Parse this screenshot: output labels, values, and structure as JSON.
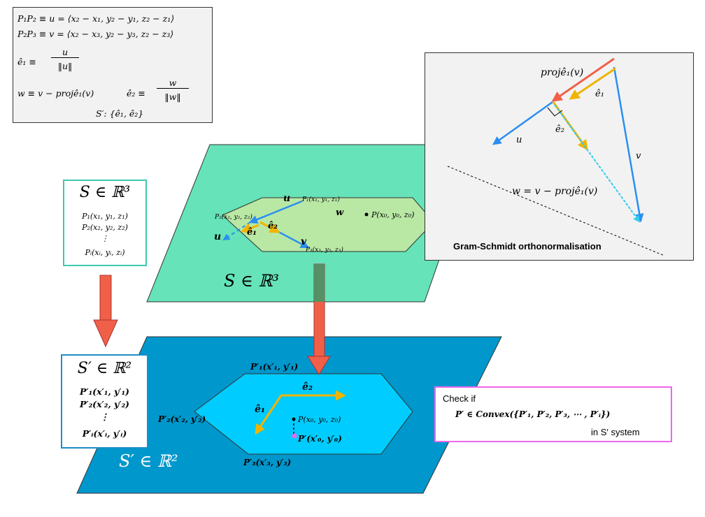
{
  "formulas": {
    "line1": "P₁P₂ ≡ u = ⟨x₂ − x₁, y₂ − y₁, z₂ − z₁⟩",
    "line2": "P₂P₃ ≡ v = ⟨x₂ − x₃, y₂ − y₃, z₂ − z₃⟩",
    "e1_lhs": "ê₁ ≡",
    "e1_num": "u",
    "e1_den": "‖u‖",
    "w_def": "w ≡ v − projê₁(v)",
    "e2_lhs": "ê₂ ≡",
    "e2_num": "w",
    "e2_den": "‖w‖",
    "basis": "S′: {ê₁, ê₂}"
  },
  "s_box": {
    "title": "S ∈ ℝ³",
    "p1": "P₁(x₁, y₁, z₁)",
    "p2": "P₂(x₂, y₂, z₂)",
    "dots": "⋮",
    "pi": "Pᵢ(xᵢ, yᵢ, zᵢ)"
  },
  "sp_box": {
    "title": "S′ ∈ ℝ²",
    "p1": "P′₁(x′₁, y′₁)",
    "p2": "P′₂(x′₂, y′₂)",
    "dots": "⋮",
    "pi": "P′ᵢ(x′ᵢ, y′ᵢ)"
  },
  "plane_3d": {
    "label": "S ∈ ℝ³",
    "p1": "P₁(x₁, y₁, z₁)",
    "p2": "P₂(x₂, y₂, z₂)",
    "p3": "P₃(x₃, y₃, z₃)",
    "p0": "P(x₀, y₀, z₀)",
    "u": "u",
    "u_dash": "u",
    "v": "v",
    "w": "w",
    "e1": "ê₁",
    "e2": "ê₂"
  },
  "plane_2d": {
    "label": "S′ ∈ ℝ²",
    "p1": "P′₁(x′₁, y′₁)",
    "p2": "P′₂(x′₂, y′₂)",
    "p3": "P′₃(x′₃, y′₃)",
    "p0_orig": "P(x₀, y₀, z₀)",
    "p0_proj": "P′(x′₀, y′₀)",
    "e1": "ê₁",
    "e2": "ê₂"
  },
  "gram_schmidt": {
    "proj": "projê₁(v)",
    "e1": "ê₁",
    "e2": "ê₂",
    "u": "u",
    "v": "v",
    "w_eq": "w = v − projê₁(v)",
    "caption": "Gram-Schmidt orthonormalisation"
  },
  "check": {
    "line1": "Check if",
    "line2": "P′ ∈ Convex({P′₁, P′₂, P′₃, ⋯ , P′ᵢ})",
    "line3": "in S′ system"
  },
  "colors": {
    "plane3d": "#66e3b8",
    "plane2d": "#0097cc",
    "hex3d": "#b9e8a5",
    "hex2d": "#00ccff",
    "blue_arrow": "#2a8ff0",
    "orange_arrow": "#f0b400",
    "red_arrow": "#f06048",
    "pink": "#ee66ee"
  }
}
